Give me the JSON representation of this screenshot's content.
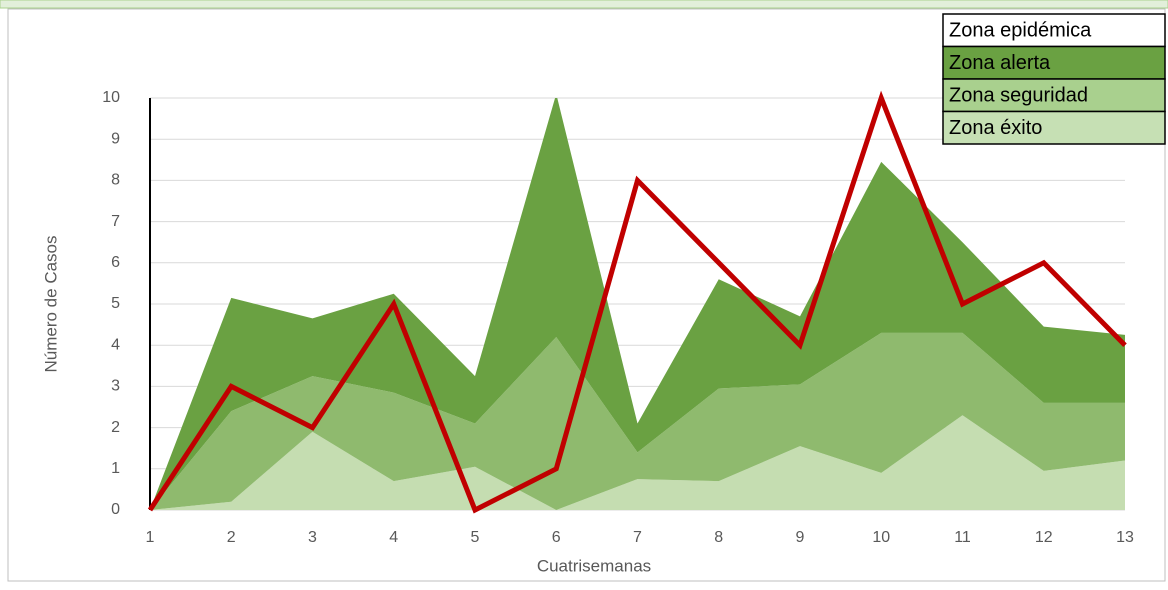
{
  "chart_data": {
    "type": "stacked-area",
    "x_label": "Cuatrisemanas",
    "y_label": "Número de Casos",
    "categories": [
      "1",
      "2",
      "3",
      "4",
      "5",
      "6",
      "7",
      "8",
      "9",
      "10",
      "11",
      "12",
      "13"
    ],
    "series": [
      {
        "name": "Zona éxito",
        "color": "#c5ddb1",
        "values": [
          0,
          0.2,
          1.9,
          0.7,
          1.05,
          0,
          0.75,
          0.7,
          1.55,
          0.9,
          2.3,
          0.95,
          1.2
        ]
      },
      {
        "name": "Zona seguridad",
        "color": "#8fba6e",
        "values": [
          0,
          2.2,
          1.35,
          2.15,
          1.05,
          4.2,
          0.65,
          2.25,
          1.5,
          3.4,
          2.0,
          1.65,
          1.4
        ]
      },
      {
        "name": "Zona alerta",
        "color": "#6aa142",
        "values": [
          0,
          2.75,
          1.4,
          2.4,
          1.15,
          5.9,
          0.7,
          2.65,
          1.65,
          4.15,
          2.2,
          1.85,
          1.65
        ]
      }
    ],
    "line": {
      "color": "#c00000",
      "values": [
        0,
        3,
        2,
        5,
        0,
        1,
        8,
        6,
        4,
        10,
        5,
        6,
        4
      ]
    },
    "legend": [
      {
        "name": "Zona epidémica",
        "color": "#ffffff"
      },
      {
        "name": "Zona alerta",
        "color": "#6aa142"
      },
      {
        "name": "Zona seguridad",
        "color": "#a9d08e"
      },
      {
        "name": "Zona éxito",
        "color": "#c6e0b4"
      }
    ],
    "ylim": [
      0,
      10
    ],
    "yticks": [
      0,
      1,
      2,
      3,
      4,
      5,
      6,
      7,
      8,
      9,
      10
    ],
    "grid": true
  }
}
